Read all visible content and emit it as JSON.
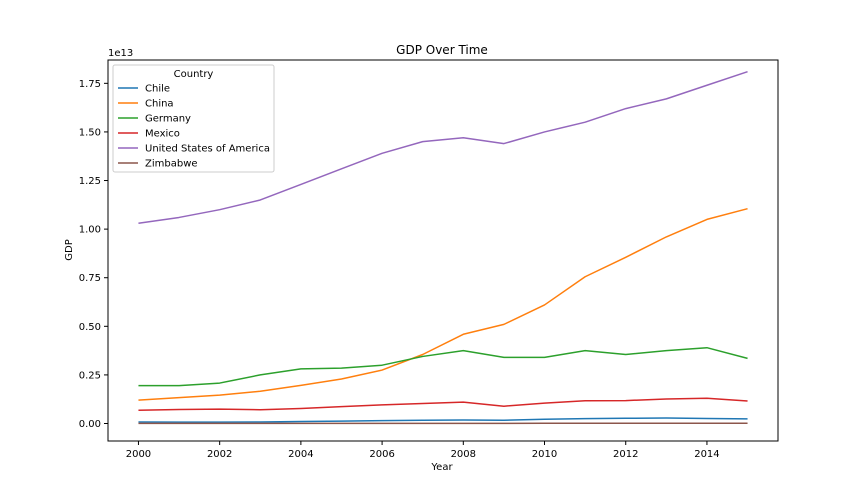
{
  "chart_data": {
    "type": "line",
    "title": "GDP Over Time",
    "xlabel": "Year",
    "ylabel": "GDP",
    "y_scale_label": "1e13",
    "xlim": [
      1999.25,
      2015.75
    ],
    "ylim": [
      -0.09,
      1.87
    ],
    "y_multiplier": 10000000000000.0,
    "x_ticks": [
      2000,
      2002,
      2004,
      2006,
      2008,
      2010,
      2012,
      2014
    ],
    "x_tick_labels": [
      "2000",
      "2002",
      "2004",
      "2006",
      "2008",
      "2010",
      "2012",
      "2014"
    ],
    "y_ticks": [
      0.0,
      0.25,
      0.5,
      0.75,
      1.0,
      1.25,
      1.5,
      1.75
    ],
    "y_tick_labels": [
      "0.00",
      "0.25",
      "0.50",
      "0.75",
      "1.00",
      "1.25",
      "1.50",
      "1.75"
    ],
    "grid": false,
    "legend": {
      "title": "Country",
      "placement": "top-left"
    },
    "x": [
      2000,
      2001,
      2002,
      2003,
      2004,
      2005,
      2006,
      2007,
      2008,
      2009,
      2010,
      2011,
      2012,
      2013,
      2014,
      2015
    ],
    "series": [
      {
        "name": "Chile",
        "color": "#1f77b4",
        "values": [
          0.008,
          0.007,
          0.007,
          0.008,
          0.01,
          0.012,
          0.015,
          0.017,
          0.018,
          0.017,
          0.022,
          0.025,
          0.027,
          0.028,
          0.026,
          0.024
        ]
      },
      {
        "name": "China",
        "color": "#ff7f0e",
        "values": [
          0.12,
          0.133,
          0.146,
          0.166,
          0.196,
          0.229,
          0.275,
          0.355,
          0.459,
          0.51,
          0.61,
          0.755,
          0.855,
          0.96,
          1.05,
          1.105
        ]
      },
      {
        "name": "Germany",
        "color": "#2ca02c",
        "values": [
          0.195,
          0.195,
          0.208,
          0.25,
          0.281,
          0.285,
          0.3,
          0.345,
          0.375,
          0.34,
          0.34,
          0.375,
          0.355,
          0.375,
          0.39,
          0.335
        ]
      },
      {
        "name": "Mexico",
        "color": "#d62728",
        "values": [
          0.068,
          0.072,
          0.074,
          0.071,
          0.077,
          0.087,
          0.096,
          0.103,
          0.11,
          0.089,
          0.105,
          0.117,
          0.118,
          0.126,
          0.13,
          0.116
        ]
      },
      {
        "name": "United States of America",
        "color": "#9467bd",
        "values": [
          1.03,
          1.06,
          1.1,
          1.15,
          1.23,
          1.31,
          1.39,
          1.45,
          1.47,
          1.44,
          1.5,
          1.55,
          1.62,
          1.67,
          1.74,
          1.81
        ]
      },
      {
        "name": "Zimbabwe",
        "color": "#8c564b",
        "values": [
          0.0007,
          0.0007,
          0.0006,
          0.0006,
          0.0005,
          0.0006,
          0.0005,
          0.0005,
          0.0004,
          0.0008,
          0.001,
          0.0012,
          0.0014,
          0.0016,
          0.0016,
          0.0016
        ]
      }
    ]
  }
}
